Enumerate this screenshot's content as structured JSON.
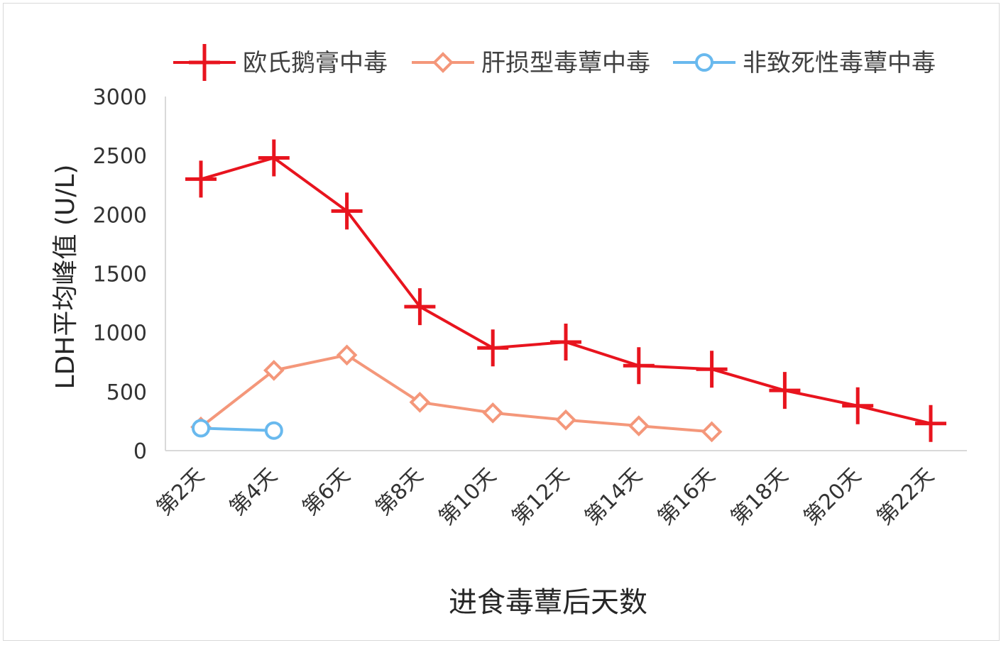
{
  "chart_data": {
    "type": "line",
    "categories": [
      "第2天",
      "第4天",
      "第6天",
      "第8天",
      "第10天",
      "第12天",
      "第14天",
      "第16天",
      "第18天",
      "第20天",
      "第22天"
    ],
    "series": [
      {
        "name": "欧氏鹅膏中毒",
        "color": "#e8141e",
        "marker": "plus",
        "values": [
          2300,
          2480,
          2030,
          1220,
          870,
          920,
          720,
          690,
          510,
          380,
          230
        ]
      },
      {
        "name": "肝损型毒蕈中毒",
        "color": "#f4977a",
        "marker": "diamond",
        "values": [
          200,
          680,
          810,
          410,
          320,
          260,
          210,
          160,
          null,
          null,
          null
        ]
      },
      {
        "name": "非致死性毒蕈中毒",
        "color": "#69b9ee",
        "marker": "circle",
        "values": [
          190,
          170,
          null,
          null,
          null,
          null,
          null,
          null,
          null,
          null,
          null
        ]
      }
    ],
    "xlabel": "进食毒蕈后天数",
    "ylabel": "LDH平均峰值 (U/L)",
    "ylim": [
      0,
      3000
    ],
    "yticks": [
      0,
      500,
      1000,
      1500,
      2000,
      2500,
      3000
    ],
    "legend_position": "top",
    "grid": false
  }
}
